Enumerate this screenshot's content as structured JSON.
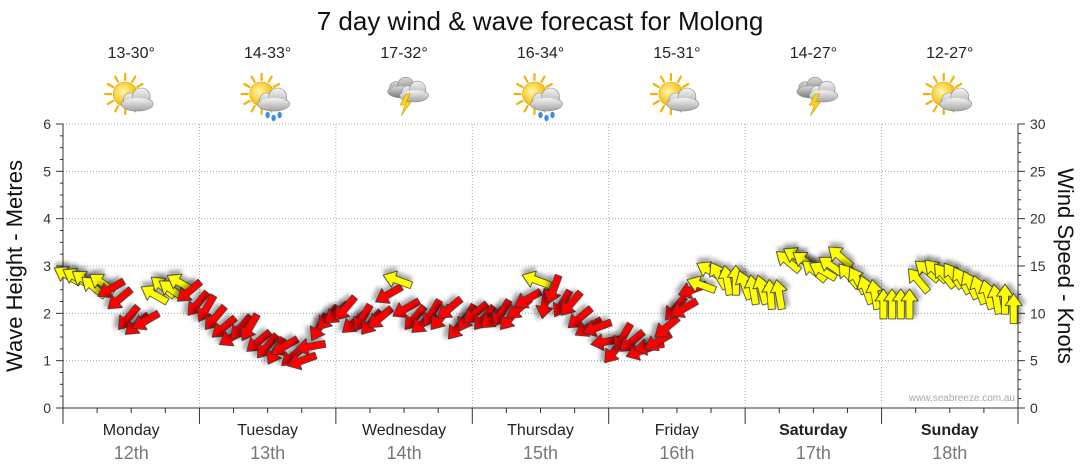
{
  "chart_data": {
    "type": "line",
    "title": "7 day wind & wave forecast for Molong",
    "ylabel_left": "Wave Height - Metres",
    "ylabel_right": "Wind Speed - Knots",
    "ylim_left": [
      0,
      6
    ],
    "ylim_right": [
      0,
      30
    ],
    "yticks_left": [
      "0",
      "1",
      "2",
      "3",
      "4",
      "5",
      "6"
    ],
    "yticks_right": [
      "0",
      "5",
      "10",
      "15",
      "20",
      "25",
      "30"
    ],
    "grid": true,
    "credit": "www.seabreeze.com.au",
    "colors": {
      "calm": "#ffff00",
      "strong": "#ff0000",
      "outline": "#333333"
    },
    "days": [
      {
        "name": "Monday",
        "date": "12th",
        "bold": false,
        "temp": "13-30°",
        "icon": "partly-cloudy-icon"
      },
      {
        "name": "Tuesday",
        "date": "13th",
        "bold": false,
        "temp": "14-33°",
        "icon": "showers-icon"
      },
      {
        "name": "Wednesday",
        "date": "14th",
        "bold": false,
        "temp": "17-32°",
        "icon": "thunderstorm-icon"
      },
      {
        "name": "Thursday",
        "date": "15th",
        "bold": false,
        "temp": "16-34°",
        "icon": "showers-icon"
      },
      {
        "name": "Friday",
        "date": "16th",
        "bold": false,
        "temp": "15-31°",
        "icon": "partly-cloudy-icon"
      },
      {
        "name": "Saturday",
        "date": "17th",
        "bold": true,
        "temp": "14-27°",
        "icon": "thunderstorm-icon"
      },
      {
        "name": "Sunday",
        "date": "18th",
        "bold": true,
        "temp": "12-27°",
        "icon": "partly-cloudy-icon"
      }
    ],
    "wind_knots": [
      14.0,
      13.8,
      13.5,
      12.8,
      13.2,
      12.6,
      11.5,
      9.5,
      8.8,
      9.2,
      12.0,
      12.8,
      12.5,
      13.2,
      12.3,
      11.0,
      10.5,
      9.5,
      8.5,
      7.5,
      8.5,
      8.5,
      7.0,
      6.5,
      6.0,
      6.5,
      5.5,
      5.0,
      6.5,
      8.5,
      9.5,
      10.0,
      10.5,
      9.0,
      9.5,
      9.0,
      9.5,
      12.0,
      13.5,
      10.5,
      9.5,
      9.0,
      10.0,
      9.5,
      10.5,
      8.5,
      9.5,
      10.0,
      9.5,
      9.5,
      10.0,
      9.5,
      10.5,
      11.5,
      13.5,
      11.0,
      12.5,
      11.0,
      11.0,
      9.5,
      8.5,
      8.5,
      7.0,
      6.0,
      7.5,
      7.0,
      6.0,
      6.5,
      7.0,
      8.5,
      10.5,
      10.5,
      12.5,
      13.0,
      14.5,
      14.0,
      13.5,
      13.5,
      13.0,
      12.5,
      12.5,
      12.0,
      12.0,
      15.5,
      16.0,
      15.5,
      14.5,
      14.5,
      15.0,
      16.0,
      14.0,
      13.5,
      12.5,
      12.0,
      11.0,
      11.0,
      11.0,
      11.0,
      13.5,
      14.5,
      14.5,
      14.0,
      14.0,
      13.5,
      13.0,
      12.5,
      12.0,
      11.5,
      11.5,
      10.5
    ],
    "wind_dir_deg": [
      30,
      30,
      35,
      40,
      35,
      330,
      320,
      310,
      320,
      330,
      30,
      40,
      35,
      30,
      320,
      310,
      300,
      310,
      320,
      330,
      310,
      300,
      320,
      310,
      300,
      330,
      320,
      340,
      350,
      300,
      310,
      320,
      310,
      320,
      300,
      310,
      320,
      330,
      20,
      330,
      310,
      320,
      300,
      310,
      320,
      310,
      300,
      320,
      310,
      320,
      300,
      310,
      320,
      330,
      20,
      280,
      290,
      300,
      310,
      320,
      330,
      340,
      350,
      310,
      300,
      320,
      340,
      350,
      330,
      320,
      310,
      330,
      340,
      20,
      30,
      60,
      80,
      90,
      70,
      80,
      75,
      85,
      80,
      40,
      30,
      35,
      40,
      30,
      35,
      40,
      50,
      60,
      70,
      80,
      90,
      90,
      90,
      90,
      50,
      40,
      45,
      50,
      55,
      60,
      65,
      70,
      75,
      80,
      90,
      90
    ]
  }
}
